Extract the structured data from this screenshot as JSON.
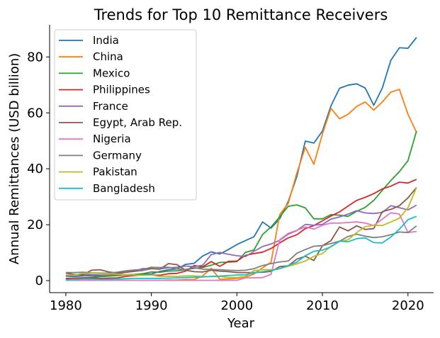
{
  "chart_data": {
    "type": "line",
    "title": "Trends for Top 10 Remittance Receivers",
    "xlabel": "Year",
    "ylabel": "Annual Remittances (USD billion)",
    "xlim": [
      1978.1,
      2023.0
    ],
    "ylim": [
      -4.3,
      91.5
    ],
    "xticks": [
      1980,
      1990,
      2000,
      2010,
      2020
    ],
    "yticks": [
      0,
      20,
      40,
      60,
      80
    ],
    "grid": false,
    "legend_position": "top-left",
    "x": [
      1980,
      1981,
      1982,
      1983,
      1984,
      1985,
      1986,
      1987,
      1988,
      1989,
      1990,
      1991,
      1992,
      1993,
      1994,
      1995,
      1996,
      1997,
      1998,
      1999,
      2000,
      2001,
      2002,
      2003,
      2004,
      2005,
      2006,
      2007,
      2008,
      2009,
      2010,
      2011,
      2012,
      2013,
      2014,
      2015,
      2016,
      2017,
      2018,
      2019,
      2020,
      2021
    ],
    "series": [
      {
        "name": "India",
        "color": "#1f77b4",
        "values": [
          1.6,
          1.5,
          1.7,
          1.8,
          1.7,
          1.8,
          1.9,
          2.1,
          2.2,
          2.4,
          2.4,
          3.3,
          3.9,
          4.2,
          5.8,
          6.2,
          8.8,
          10.3,
          9.5,
          11.1,
          12.9,
          14.3,
          15.7,
          21.0,
          18.8,
          22.1,
          28.3,
          37.2,
          49.9,
          49.2,
          53.5,
          62.5,
          68.8,
          69.9,
          70.4,
          68.9,
          62.7,
          68.9,
          78.8,
          83.3,
          83.1,
          87.0
        ]
      },
      {
        "name": "China",
        "color": "#ff7f0e",
        "values": [
          0.1,
          0.1,
          0.1,
          0.1,
          0.1,
          0.1,
          0.1,
          0.1,
          0.1,
          0.1,
          0.1,
          0.1,
          0.2,
          0.2,
          0.4,
          0.4,
          1.7,
          4.4,
          0.5,
          0.6,
          0.8,
          1.2,
          2.4,
          4.6,
          6.6,
          23.6,
          27.6,
          38.4,
          47.7,
          41.6,
          52.5,
          61.6,
          57.9,
          59.5,
          62.3,
          63.9,
          61.0,
          63.9,
          67.4,
          68.4,
          59.5,
          53.0
        ]
      },
      {
        "name": "Mexico",
        "color": "#2ca02c",
        "values": [
          0.7,
          0.9,
          1.0,
          1.2,
          1.4,
          1.6,
          1.8,
          2.0,
          2.2,
          2.5,
          3.1,
          3.0,
          3.4,
          3.5,
          3.9,
          4.4,
          4.7,
          5.5,
          6.5,
          6.6,
          6.8,
          10.1,
          11.0,
          16.5,
          19.2,
          22.8,
          26.6,
          27.1,
          26.0,
          22.1,
          22.1,
          23.6,
          23.4,
          23.0,
          24.8,
          26.2,
          28.7,
          32.3,
          35.8,
          39.0,
          42.9,
          53.5
        ]
      },
      {
        "name": "Philippines",
        "color": "#d62728",
        "values": [
          0.8,
          0.9,
          1.0,
          1.0,
          0.8,
          0.9,
          1.0,
          1.5,
          1.8,
          2.0,
          2.0,
          1.9,
          2.5,
          2.6,
          3.4,
          5.4,
          4.9,
          6.8,
          5.1,
          6.9,
          7.0,
          9.0,
          9.7,
          10.2,
          11.5,
          13.5,
          15.3,
          16.4,
          18.6,
          19.7,
          21.4,
          23.1,
          24.6,
          26.7,
          28.7,
          29.8,
          31.1,
          32.8,
          33.8,
          35.2,
          34.9,
          36.2
        ]
      },
      {
        "name": "France",
        "color": "#9467bd",
        "values": [
          1.9,
          2.0,
          2.3,
          2.1,
          2.0,
          2.0,
          2.4,
          3.0,
          3.3,
          3.6,
          4.3,
          4.2,
          4.6,
          4.8,
          5.2,
          5.0,
          5.5,
          9.3,
          10.1,
          9.4,
          8.9,
          8.6,
          10.5,
          12.2,
          13.1,
          14.4,
          16.6,
          17.9,
          20.1,
          19.8,
          20.1,
          22.0,
          22.8,
          23.8,
          25.0,
          24.2,
          24.0,
          24.4,
          26.8,
          26.1,
          25.3,
          27.0
        ]
      },
      {
        "name": "Egypt, Arab Rep.",
        "color": "#8c564b",
        "values": [
          2.7,
          2.2,
          2.1,
          3.7,
          3.9,
          3.1,
          2.7,
          3.0,
          3.4,
          4.3,
          4.3,
          4.1,
          6.1,
          5.7,
          3.7,
          3.2,
          3.1,
          3.7,
          3.4,
          3.2,
          2.9,
          2.9,
          2.9,
          3.0,
          3.3,
          5.0,
          5.3,
          7.7,
          8.7,
          7.2,
          12.5,
          14.3,
          19.2,
          17.8,
          19.6,
          18.3,
          18.6,
          24.7,
          25.5,
          26.8,
          29.6,
          33.3
        ]
      },
      {
        "name": "Nigeria",
        "color": "#e377c2",
        "values": [
          0.1,
          0.1,
          0.1,
          0.1,
          0.1,
          0.1,
          0.1,
          0.1,
          0.1,
          0.1,
          0.1,
          0.1,
          0.1,
          0.1,
          0.1,
          0.1,
          0.1,
          0.1,
          0.1,
          0.1,
          0.1,
          1.0,
          1.0,
          1.1,
          2.3,
          14.6,
          16.9,
          18.0,
          19.2,
          18.4,
          19.8,
          20.6,
          20.6,
          20.8,
          21.0,
          20.6,
          19.7,
          22.0,
          24.3,
          23.8,
          17.2,
          17.6
        ]
      },
      {
        "name": "Germany",
        "color": "#7f7f7f",
        "values": [
          2.9,
          2.9,
          3.0,
          2.8,
          2.7,
          2.7,
          3.0,
          3.5,
          3.8,
          4.0,
          4.8,
          4.7,
          4.8,
          4.2,
          4.0,
          4.6,
          4.1,
          4.0,
          3.9,
          3.7,
          3.6,
          3.7,
          4.3,
          5.4,
          6.1,
          6.7,
          7.0,
          9.8,
          11.1,
          12.3,
          12.5,
          13.3,
          14.1,
          15.8,
          16.6,
          15.9,
          15.4,
          15.7,
          16.4,
          17.4,
          17.2,
          19.6
        ]
      },
      {
        "name": "Pakistan",
        "color": "#bcbd22",
        "values": [
          2.0,
          2.0,
          2.6,
          2.7,
          2.5,
          2.5,
          2.3,
          2.1,
          2.0,
          1.9,
          2.0,
          1.5,
          1.6,
          1.5,
          1.7,
          1.7,
          1.5,
          1.4,
          1.5,
          1.1,
          1.1,
          1.5,
          3.6,
          3.9,
          3.9,
          4.3,
          5.1,
          6.0,
          7.0,
          8.7,
          9.7,
          12.3,
          14.0,
          14.6,
          17.2,
          19.3,
          19.8,
          19.7,
          21.0,
          22.3,
          26.1,
          33.3
        ]
      },
      {
        "name": "Bangladesh",
        "color": "#17becf",
        "values": [
          0.3,
          0.4,
          0.6,
          0.6,
          0.5,
          0.5,
          0.6,
          0.7,
          0.8,
          0.8,
          0.8,
          0.8,
          0.9,
          1.0,
          1.1,
          1.2,
          1.3,
          1.5,
          1.6,
          1.8,
          2.0,
          2.1,
          2.8,
          3.2,
          3.6,
          4.3,
          5.4,
          6.6,
          8.9,
          10.5,
          10.9,
          12.1,
          14.1,
          13.9,
          15.0,
          15.3,
          13.6,
          13.5,
          15.6,
          18.4,
          21.8,
          23.0
        ]
      }
    ]
  }
}
